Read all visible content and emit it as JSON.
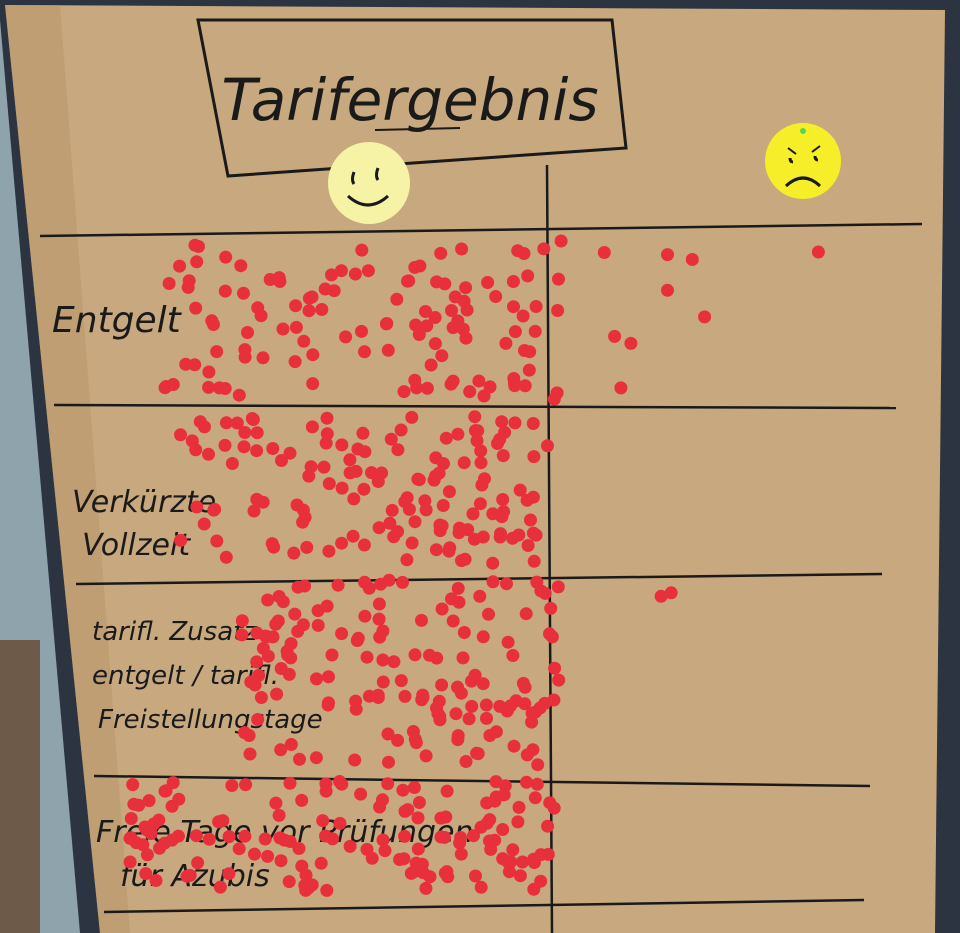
{
  "poster": {
    "title": "Tarifergebnis",
    "columns": [
      {
        "label": "Zufrieden",
        "icon": "happy-face-icon",
        "color": "#f6f2a6"
      },
      {
        "label": "Unzufrieden",
        "icon": "sad-face-icon",
        "color": "#f7ee2a"
      }
    ],
    "rows": [
      {
        "lines": [
          "Entgelt"
        ],
        "happy_dots": 118,
        "sad_dots": 10
      },
      {
        "lines": [
          "Verkürzte",
          "Vollzeit"
        ],
        "happy_dots": 140,
        "sad_dots": 0
      },
      {
        "lines": [
          "tarifl. Zusatz-",
          "entgelt / tarifl.",
          "Freistellungstage"
        ],
        "happy_dots": 150,
        "sad_dots": 2
      },
      {
        "lines": [
          "Freie Tage vor Prüfungen",
          "für Azubis"
        ],
        "happy_dots": 145,
        "sad_dots": 0
      }
    ]
  },
  "colors": {
    "paper": "#c8a87e",
    "paper_shadow": "#b89468",
    "ink": "#1a1a1a",
    "dot": "#e8303c",
    "board": "#2b3440",
    "wall": "#8fa3ad"
  }
}
